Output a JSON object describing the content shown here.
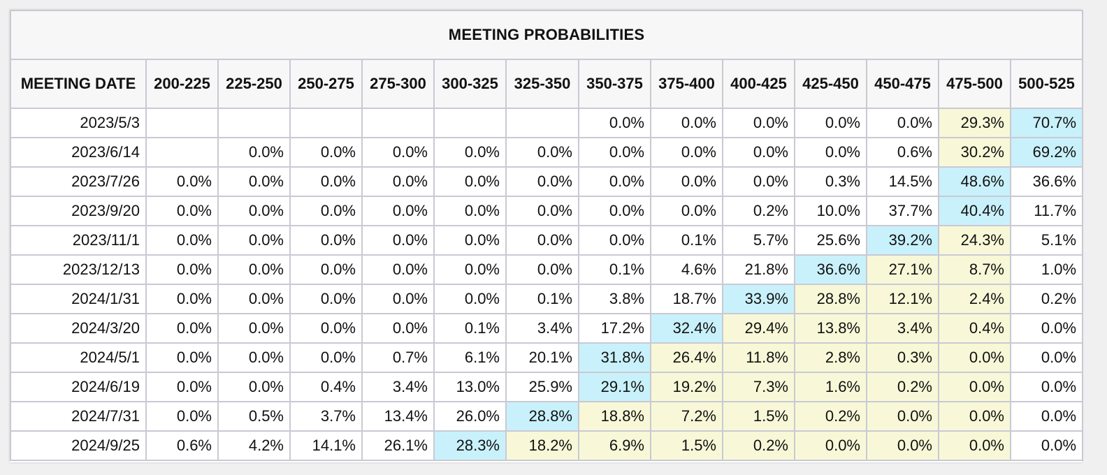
{
  "title": "MEETING PROBABILITIES",
  "colors": {
    "highest_probability": "#c9f1fb",
    "elevated_probability": "#f8f8d8",
    "header_background": "#f7f7f7",
    "grid": "#c9c9d4"
  },
  "columns": [
    "MEETING DATE",
    "200-225",
    "225-250",
    "250-275",
    "275-300",
    "300-325",
    "325-350",
    "350-375",
    "375-400",
    "400-425",
    "425-450",
    "450-475",
    "475-500",
    "500-525"
  ],
  "rows": [
    {
      "date": "2023/5/3",
      "values": [
        "",
        "",
        "",
        "",
        "",
        "",
        "0.0%",
        "0.0%",
        "0.0%",
        "0.0%",
        "0.0%",
        "29.3%",
        "70.7%"
      ],
      "hl": [
        "",
        "",
        "",
        "",
        "",
        "",
        "",
        "",
        "",
        "",
        "",
        "yellow",
        "cyan"
      ]
    },
    {
      "date": "2023/6/14",
      "values": [
        "",
        "0.0%",
        "0.0%",
        "0.0%",
        "0.0%",
        "0.0%",
        "0.0%",
        "0.0%",
        "0.0%",
        "0.0%",
        "0.6%",
        "30.2%",
        "69.2%"
      ],
      "hl": [
        "",
        "",
        "",
        "",
        "",
        "",
        "",
        "",
        "",
        "",
        "",
        "yellow",
        "cyan"
      ]
    },
    {
      "date": "2023/7/26",
      "values": [
        "0.0%",
        "0.0%",
        "0.0%",
        "0.0%",
        "0.0%",
        "0.0%",
        "0.0%",
        "0.0%",
        "0.0%",
        "0.3%",
        "14.5%",
        "48.6%",
        "36.6%"
      ],
      "hl": [
        "",
        "",
        "",
        "",
        "",
        "",
        "",
        "",
        "",
        "",
        "",
        "cyan",
        ""
      ]
    },
    {
      "date": "2023/9/20",
      "values": [
        "0.0%",
        "0.0%",
        "0.0%",
        "0.0%",
        "0.0%",
        "0.0%",
        "0.0%",
        "0.0%",
        "0.2%",
        "10.0%",
        "37.7%",
        "40.4%",
        "11.7%"
      ],
      "hl": [
        "",
        "",
        "",
        "",
        "",
        "",
        "",
        "",
        "",
        "",
        "",
        "cyan",
        ""
      ]
    },
    {
      "date": "2023/11/1",
      "values": [
        "0.0%",
        "0.0%",
        "0.0%",
        "0.0%",
        "0.0%",
        "0.0%",
        "0.0%",
        "0.1%",
        "5.7%",
        "25.6%",
        "39.2%",
        "24.3%",
        "5.1%"
      ],
      "hl": [
        "",
        "",
        "",
        "",
        "",
        "",
        "",
        "",
        "",
        "",
        "cyan",
        "yellow",
        ""
      ]
    },
    {
      "date": "2023/12/13",
      "values": [
        "0.0%",
        "0.0%",
        "0.0%",
        "0.0%",
        "0.0%",
        "0.0%",
        "0.1%",
        "4.6%",
        "21.8%",
        "36.6%",
        "27.1%",
        "8.7%",
        "1.0%"
      ],
      "hl": [
        "",
        "",
        "",
        "",
        "",
        "",
        "",
        "",
        "",
        "cyan",
        "yellow",
        "yellow",
        ""
      ]
    },
    {
      "date": "2024/1/31",
      "values": [
        "0.0%",
        "0.0%",
        "0.0%",
        "0.0%",
        "0.0%",
        "0.1%",
        "3.8%",
        "18.7%",
        "33.9%",
        "28.8%",
        "12.1%",
        "2.4%",
        "0.2%"
      ],
      "hl": [
        "",
        "",
        "",
        "",
        "",
        "",
        "",
        "",
        "cyan",
        "yellow",
        "yellow",
        "yellow",
        ""
      ]
    },
    {
      "date": "2024/3/20",
      "values": [
        "0.0%",
        "0.0%",
        "0.0%",
        "0.0%",
        "0.1%",
        "3.4%",
        "17.2%",
        "32.4%",
        "29.4%",
        "13.8%",
        "3.4%",
        "0.4%",
        "0.0%"
      ],
      "hl": [
        "",
        "",
        "",
        "",
        "",
        "",
        "",
        "cyan",
        "yellow",
        "yellow",
        "yellow",
        "yellow",
        ""
      ]
    },
    {
      "date": "2024/5/1",
      "values": [
        "0.0%",
        "0.0%",
        "0.0%",
        "0.7%",
        "6.1%",
        "20.1%",
        "31.8%",
        "26.4%",
        "11.8%",
        "2.8%",
        "0.3%",
        "0.0%",
        "0.0%"
      ],
      "hl": [
        "",
        "",
        "",
        "",
        "",
        "",
        "cyan",
        "yellow",
        "yellow",
        "yellow",
        "yellow",
        "yellow",
        ""
      ]
    },
    {
      "date": "2024/6/19",
      "values": [
        "0.0%",
        "0.0%",
        "0.4%",
        "3.4%",
        "13.0%",
        "25.9%",
        "29.1%",
        "19.2%",
        "7.3%",
        "1.6%",
        "0.2%",
        "0.0%",
        "0.0%"
      ],
      "hl": [
        "",
        "",
        "",
        "",
        "",
        "",
        "cyan",
        "yellow",
        "yellow",
        "yellow",
        "yellow",
        "yellow",
        ""
      ]
    },
    {
      "date": "2024/7/31",
      "values": [
        "0.0%",
        "0.5%",
        "3.7%",
        "13.4%",
        "26.0%",
        "28.8%",
        "18.8%",
        "7.2%",
        "1.5%",
        "0.2%",
        "0.0%",
        "0.0%",
        "0.0%"
      ],
      "hl": [
        "",
        "",
        "",
        "",
        "",
        "cyan",
        "yellow",
        "yellow",
        "yellow",
        "yellow",
        "yellow",
        "yellow",
        ""
      ]
    },
    {
      "date": "2024/9/25",
      "values": [
        "0.6%",
        "4.2%",
        "14.1%",
        "26.1%",
        "28.3%",
        "18.2%",
        "6.9%",
        "1.5%",
        "0.2%",
        "0.0%",
        "0.0%",
        "0.0%",
        "0.0%"
      ],
      "hl": [
        "",
        "",
        "",
        "",
        "cyan",
        "yellow",
        "yellow",
        "yellow",
        "yellow",
        "yellow",
        "yellow",
        "yellow",
        ""
      ]
    }
  ]
}
